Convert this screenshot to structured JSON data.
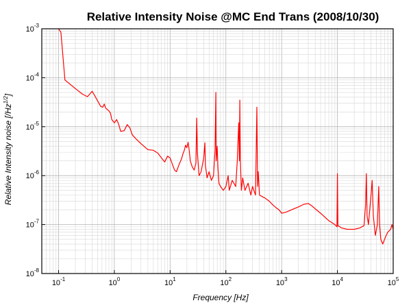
{
  "chart_data": {
    "type": "line",
    "title": "Relative Intensity Noise @MC End Trans (2008/10/30)",
    "xlabel": "Frequency [Hz]",
    "ylabel": "Relative Intensity noise [/Hz",
    "ylabel_exp": "1/2",
    "ylabel_close": "]",
    "xscale": "log",
    "yscale": "log",
    "xlim": [
      0.05,
      100000
    ],
    "ylim": [
      1e-08,
      0.001
    ],
    "grid": true,
    "line_color": "#ff0000",
    "x_ticks": [
      {
        "value": 0.1,
        "base": "10",
        "exp": "-1"
      },
      {
        "value": 1,
        "base": "10",
        "exp": "0"
      },
      {
        "value": 10,
        "base": "10",
        "exp": "1"
      },
      {
        "value": 100,
        "base": "10",
        "exp": "2"
      },
      {
        "value": 1000,
        "base": "10",
        "exp": "3"
      },
      {
        "value": 10000,
        "base": "10",
        "exp": "4"
      },
      {
        "value": 100000,
        "base": "10",
        "exp": "5"
      }
    ],
    "y_ticks": [
      {
        "value": 0.001,
        "base": "10",
        "exp": "-3"
      },
      {
        "value": 0.0001,
        "base": "10",
        "exp": "-4"
      },
      {
        "value": 1e-05,
        "base": "10",
        "exp": "-5"
      },
      {
        "value": 1e-06,
        "base": "10",
        "exp": "-6"
      },
      {
        "value": 1e-07,
        "base": "10",
        "exp": "-7"
      },
      {
        "value": 1e-08,
        "base": "10",
        "exp": "-8"
      }
    ],
    "series": [
      {
        "points": [
          [
            0.1,
            0.001
          ],
          [
            0.11,
            0.00085
          ],
          [
            0.13,
            9e-05
          ],
          [
            0.2,
            6e-05
          ],
          [
            0.27,
            4.6e-05
          ],
          [
            0.33,
            4.1e-05
          ],
          [
            0.36,
            4.6e-05
          ],
          [
            0.4,
            5.3e-05
          ],
          [
            0.45,
            4.2e-05
          ],
          [
            0.5,
            3.4e-05
          ],
          [
            0.57,
            2.6e-05
          ],
          [
            0.62,
            2.5e-05
          ],
          [
            0.66,
            2.9e-05
          ],
          [
            0.7,
            2.4e-05
          ],
          [
            0.8,
            2.1e-05
          ],
          [
            0.85,
            1.9e-05
          ],
          [
            0.9,
            1.4e-05
          ],
          [
            1.0,
            1.2e-05
          ],
          [
            1.1,
            1.4e-05
          ],
          [
            1.2,
            1.1e-05
          ],
          [
            1.3,
            8e-06
          ],
          [
            1.5,
            8.3e-06
          ],
          [
            1.7,
            1.1e-05
          ],
          [
            1.9,
            9.5e-06
          ],
          [
            2.1,
            6.8e-06
          ],
          [
            2.5,
            5.5e-06
          ],
          [
            3.0,
            4.5e-06
          ],
          [
            4.0,
            3.4e-06
          ],
          [
            5.0,
            3.3e-06
          ],
          [
            6.0,
            2.9e-06
          ],
          [
            7.0,
            2.3e-06
          ],
          [
            8.0,
            1.9e-06
          ],
          [
            9.0,
            2.5e-06
          ],
          [
            10.0,
            2.3e-06
          ],
          [
            11.0,
            1.7e-06
          ],
          [
            12.0,
            1.3e-06
          ],
          [
            13.0,
            1.2e-06
          ],
          [
            14.5,
            1.7e-06
          ],
          [
            16.0,
            2.2e-06
          ],
          [
            17.0,
            2.8e-06
          ],
          [
            18.0,
            3.3e-06
          ],
          [
            19.0,
            4.2e-06
          ],
          [
            20.0,
            3.7e-06
          ],
          [
            21.0,
            4.8e-06
          ],
          [
            22.0,
            3.3e-06
          ],
          [
            23.0,
            2e-06
          ],
          [
            25.0,
            1.5e-06
          ],
          [
            27.0,
            1.3e-06
          ],
          [
            29.0,
            1.8e-06
          ],
          [
            30.0,
            1.5e-05
          ],
          [
            31.0,
            2.8e-06
          ],
          [
            33.0,
            1e-06
          ],
          [
            36.0,
            1.2e-06
          ],
          [
            40.0,
            2.3e-06
          ],
          [
            42.0,
            4.7e-06
          ],
          [
            43.0,
            1.6e-06
          ],
          [
            46.0,
            9e-07
          ],
          [
            50.0,
            1.2e-06
          ],
          [
            55.0,
            8e-07
          ],
          [
            60.0,
            1e-06
          ],
          [
            64.0,
            3.5e-06
          ],
          [
            66.0,
            5e-05
          ],
          [
            67.0,
            2e-06
          ],
          [
            70.0,
            4e-06
          ],
          [
            72.0,
            1.5e-06
          ],
          [
            75.0,
            7e-07
          ],
          [
            80.0,
            6e-07
          ],
          [
            90.0,
            5e-07
          ],
          [
            100.0,
            6e-07
          ],
          [
            110.0,
            1e-06
          ],
          [
            115.0,
            5e-07
          ],
          [
            130.0,
            8e-07
          ],
          [
            150.0,
            6e-07
          ],
          [
            160.0,
            2e-06
          ],
          [
            170.0,
            1.2e-05
          ],
          [
            175.0,
            2e-06
          ],
          [
            178.0,
            3.5e-05
          ],
          [
            182.0,
            2e-06
          ],
          [
            190.0,
            5e-07
          ],
          [
            200.0,
            9e-07
          ],
          [
            220.0,
            5e-07
          ],
          [
            250.0,
            7e-07
          ],
          [
            280.0,
            4e-07
          ],
          [
            300.0,
            6e-07
          ],
          [
            340.0,
            4e-07
          ],
          [
            360.0,
            2.5e-05
          ],
          [
            370.0,
            6e-07
          ],
          [
            380.0,
            1.2e-06
          ],
          [
            400.0,
            4e-07
          ],
          [
            500.0,
            3.5e-07
          ],
          [
            600.0,
            3e-07
          ],
          [
            700.0,
            2.5e-07
          ],
          [
            800.0,
            2.2e-07
          ],
          [
            900.0,
            2e-07
          ],
          [
            1000.0,
            1.7e-07
          ],
          [
            1200.0,
            1.8e-07
          ],
          [
            1500.0,
            2e-07
          ],
          [
            2000.0,
            2.3e-07
          ],
          [
            2500.0,
            2.6e-07
          ],
          [
            3000.0,
            2.7e-07
          ],
          [
            3500.0,
            2.4e-07
          ],
          [
            4000.0,
            2.1e-07
          ],
          [
            5000.0,
            1.7e-07
          ],
          [
            7000.0,
            1.2e-07
          ],
          [
            9000.0,
            1e-07
          ],
          [
            9800.0,
            9e-08
          ],
          [
            10000.0,
            1.1e-06
          ],
          [
            10200.0,
            9.5e-08
          ],
          [
            12000.0,
            8.5e-08
          ],
          [
            15000.0,
            8e-08
          ],
          [
            20000.0,
            8e-08
          ],
          [
            25000.0,
            8.5e-08
          ],
          [
            30000.0,
            9.5e-08
          ],
          [
            32000.0,
            2.5e-07
          ],
          [
            33000.0,
            1.1e-06
          ],
          [
            34000.0,
            1.5e-07
          ],
          [
            36000.0,
            1e-07
          ],
          [
            40000.0,
            4e-07
          ],
          [
            42000.0,
            8e-07
          ],
          [
            44000.0,
            1.5e-07
          ],
          [
            48000.0,
            6e-08
          ],
          [
            52000.0,
            1e-07
          ],
          [
            55000.0,
            6e-07
          ],
          [
            57000.0,
            1e-07
          ],
          [
            60000.0,
            5e-08
          ],
          [
            65000.0,
            4e-08
          ],
          [
            70000.0,
            5e-08
          ],
          [
            75000.0,
            6e-08
          ],
          [
            80000.0,
            7e-08
          ],
          [
            90000.0,
            8e-08
          ],
          [
            95000.0,
            1e-07
          ],
          [
            100000.0,
            8e-08
          ]
        ]
      }
    ]
  }
}
